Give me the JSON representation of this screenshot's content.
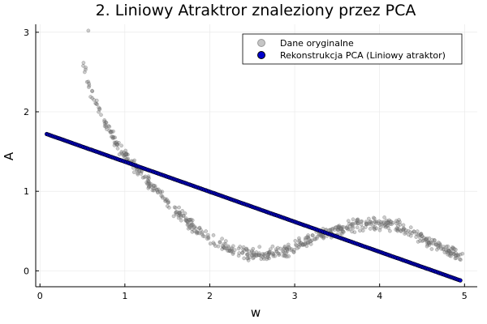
{
  "chart_data": {
    "type": "scatter",
    "title": "2. Liniowy Atraktror znaleziony przez PCA",
    "xlabel": "w",
    "ylabel": "A",
    "xlim": [
      -0.05,
      5.15
    ],
    "ylim": [
      -0.2,
      3.1
    ],
    "x_ticks": [
      0,
      1,
      2,
      3,
      4,
      5
    ],
    "y_ticks": [
      0,
      1,
      2,
      3
    ],
    "x_tick_labels": [
      "0",
      "1",
      "2",
      "3",
      "4",
      "5"
    ],
    "y_tick_labels": [
      "0",
      "1",
      "2",
      "3"
    ],
    "grid": true,
    "legend_position": "top-right",
    "colors": {
      "original": "#7f7f7f",
      "pca": "#0000cc",
      "pca_stroke": "#000000",
      "grid": "#e6e6e6",
      "axis": "#000000"
    },
    "series": [
      {
        "name": "Dane oryginalne",
        "style": "scatter",
        "curve_points": [
          {
            "w": 0.5,
            "A": 2.65
          },
          {
            "w": 0.6,
            "A": 2.25
          },
          {
            "w": 0.75,
            "A": 1.9
          },
          {
            "w": 0.9,
            "A": 1.6
          },
          {
            "w": 1.0,
            "A": 1.45
          },
          {
            "w": 1.25,
            "A": 1.15
          },
          {
            "w": 1.5,
            "A": 0.85
          },
          {
            "w": 1.75,
            "A": 0.6
          },
          {
            "w": 2.0,
            "A": 0.4
          },
          {
            "w": 2.25,
            "A": 0.27
          },
          {
            "w": 2.5,
            "A": 0.2
          },
          {
            "w": 2.75,
            "A": 0.22
          },
          {
            "w": 3.0,
            "A": 0.3
          },
          {
            "w": 3.25,
            "A": 0.42
          },
          {
            "w": 3.5,
            "A": 0.52
          },
          {
            "w": 3.75,
            "A": 0.58
          },
          {
            "w": 4.0,
            "A": 0.6
          },
          {
            "w": 4.25,
            "A": 0.55
          },
          {
            "w": 4.5,
            "A": 0.42
          },
          {
            "w": 4.75,
            "A": 0.28
          },
          {
            "w": 5.0,
            "A": 0.15
          }
        ],
        "outliers": [
          {
            "w": 0.57,
            "A": 3.02
          }
        ]
      },
      {
        "name": "Rekonstrukcja PCA (Liniowy atraktor)",
        "style": "line-of-points",
        "start": {
          "w": 0.08,
          "A": 1.72
        },
        "end": {
          "w": 4.95,
          "A": -0.12
        }
      }
    ]
  }
}
